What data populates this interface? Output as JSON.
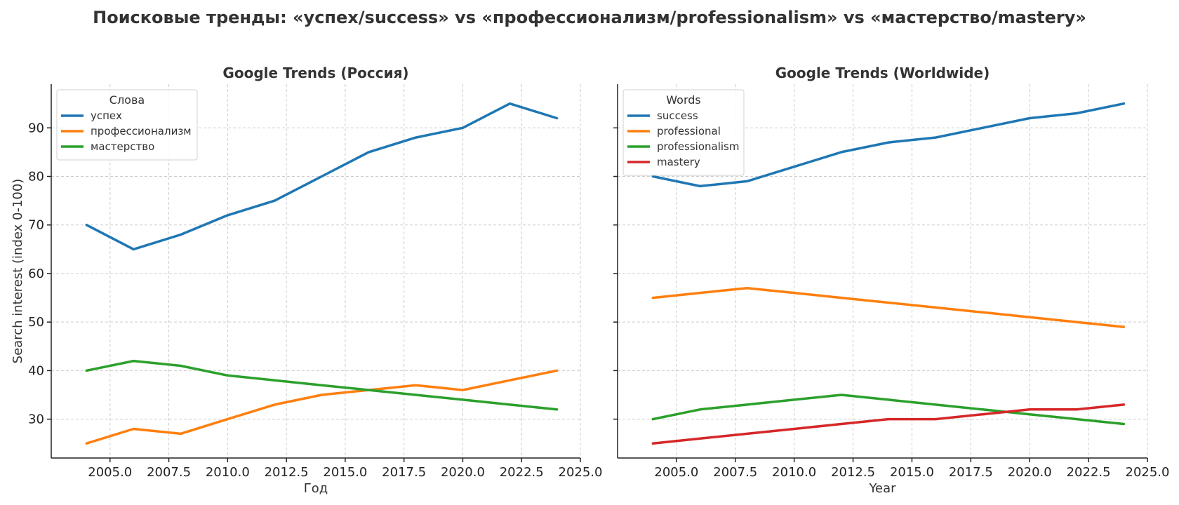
{
  "title": "Поисковые тренды: «успех/success» vs «профессионализм/professionalism» vs «мастерство/mastery»",
  "chart_data": [
    {
      "type": "line",
      "title": "Google Trends (Россия)",
      "xlabel": "Год",
      "ylabel": "Search interest (index 0-100)",
      "xlim": [
        2002.5,
        2025.0
      ],
      "ylim": [
        22,
        99
      ],
      "x_ticks": [
        2005.0,
        2007.5,
        2010.0,
        2012.5,
        2015.0,
        2017.5,
        2020.0,
        2022.5,
        2025.0
      ],
      "x_tick_labels": [
        "2005.0",
        "2007.5",
        "2010.0",
        "2012.5",
        "2015.0",
        "2017.5",
        "2020.0",
        "2022.5",
        "2025.0"
      ],
      "y_ticks": [
        30,
        40,
        50,
        60,
        70,
        80,
        90
      ],
      "y_tick_labels": [
        "30",
        "40",
        "50",
        "60",
        "70",
        "80",
        "90"
      ],
      "grid": true,
      "legend": {
        "title": "Слова",
        "placement": "top-left"
      },
      "x": [
        2004,
        2006,
        2008,
        2010,
        2012,
        2014,
        2016,
        2018,
        2020,
        2022,
        2024
      ],
      "series": [
        {
          "name": "успех",
          "color": "#1f77b4",
          "values": [
            70,
            65,
            68,
            72,
            75,
            80,
            85,
            88,
            90,
            95,
            92
          ]
        },
        {
          "name": "профессионализм",
          "color": "#ff7f0e",
          "values": [
            25,
            28,
            27,
            30,
            33,
            35,
            36,
            37,
            36,
            38,
            40
          ]
        },
        {
          "name": "мастерство",
          "color": "#2ca02c",
          "values": [
            40,
            42,
            41,
            39,
            38,
            37,
            36,
            35,
            34,
            33,
            32
          ]
        }
      ]
    },
    {
      "type": "line",
      "title": "Google Trends (Worldwide)",
      "xlabel": "Year",
      "ylabel": "",
      "xlim": [
        2002.5,
        2025.0
      ],
      "ylim": [
        22,
        99
      ],
      "x_ticks": [
        2005.0,
        2007.5,
        2010.0,
        2012.5,
        2015.0,
        2017.5,
        2020.0,
        2022.5,
        2025.0
      ],
      "x_tick_labels": [
        "2005.0",
        "2007.5",
        "2010.0",
        "2012.5",
        "2015.0",
        "2017.5",
        "2020.0",
        "2022.5",
        "2025.0"
      ],
      "y_ticks": [
        30,
        40,
        50,
        60,
        70,
        80,
        90
      ],
      "y_tick_labels": [],
      "grid": true,
      "legend": {
        "title": "Words",
        "placement": "top-left"
      },
      "x": [
        2004,
        2006,
        2008,
        2010,
        2012,
        2014,
        2016,
        2018,
        2020,
        2022,
        2024
      ],
      "series": [
        {
          "name": "success",
          "color": "#1f77b4",
          "values": [
            80,
            78,
            79,
            82,
            85,
            87,
            88,
            90,
            92,
            93,
            95
          ]
        },
        {
          "name": "professional",
          "color": "#ff7f0e",
          "values": [
            55,
            56,
            57,
            56,
            55,
            54,
            53,
            52,
            51,
            50,
            49
          ]
        },
        {
          "name": "professionalism",
          "color": "#2ca02c",
          "values": [
            30,
            32,
            33,
            34,
            35,
            34,
            33,
            32,
            31,
            30,
            29
          ]
        },
        {
          "name": "mastery",
          "color": "#d62728",
          "values": [
            25,
            26,
            27,
            28,
            29,
            30,
            30,
            31,
            32,
            32,
            33
          ]
        }
      ]
    }
  ]
}
